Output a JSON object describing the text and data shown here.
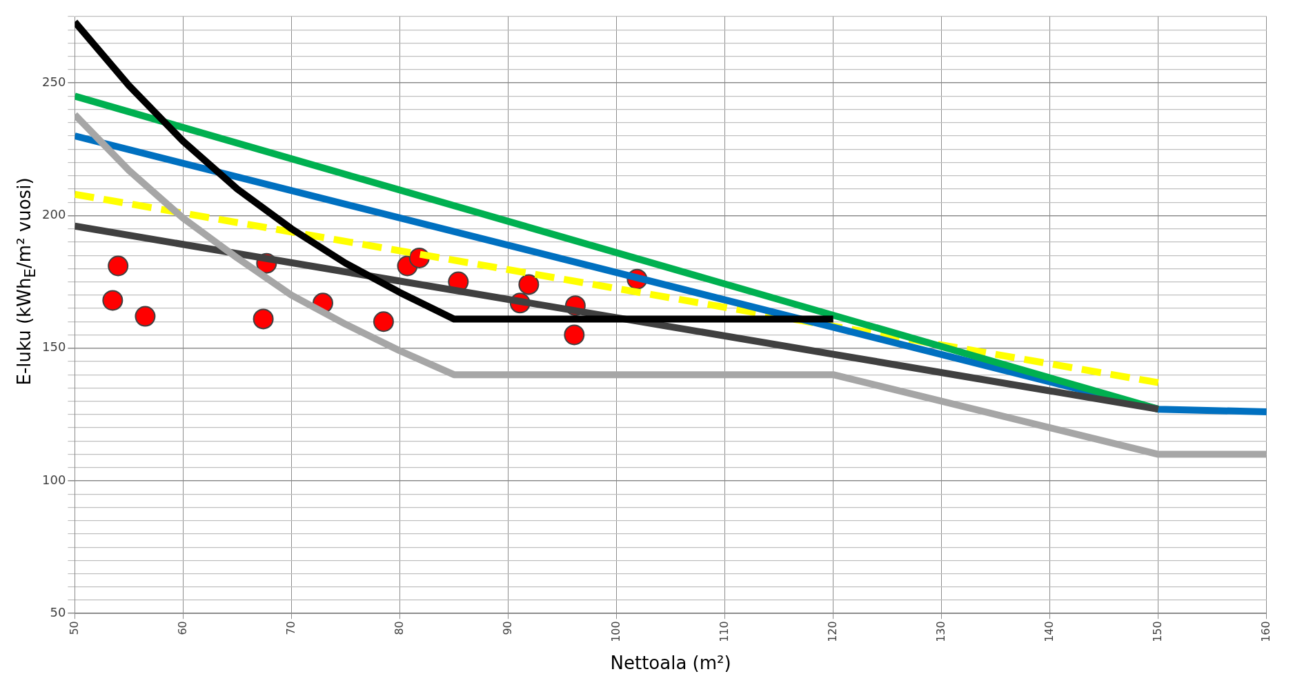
{
  "chart_data": {
    "type": "line",
    "xlabel": "Nettoala (m²)",
    "ylabel": "E-luku (kWh$_{E}$/m² vuosi)",
    "xlim": [
      50,
      160
    ],
    "xticks": [
      50,
      60,
      70,
      80,
      90,
      100,
      110,
      120,
      130,
      140,
      150,
      160
    ],
    "ylim": [
      50,
      275
    ],
    "yticks": [
      50,
      {
        "value": 55,
        "label": null
      },
      {
        "value": 60,
        "label": null
      },
      {
        "value": 65,
        "label": null
      },
      {
        "value": 70,
        "label": null
      },
      {
        "value": 75,
        "label": null
      },
      {
        "value": 80,
        "label": null
      },
      {
        "value": 85,
        "label": null
      },
      {
        "value": 90,
        "label": null
      },
      {
        "value": 95,
        "label": null
      },
      100,
      {
        "value": 105,
        "label": null
      },
      {
        "value": 110,
        "label": null
      },
      {
        "value": 115,
        "label": null
      },
      {
        "value": 120,
        "label": null
      },
      {
        "value": 125,
        "label": null
      },
      {
        "value": 130,
        "label": null
      },
      {
        "value": 135,
        "label": null
      },
      {
        "value": 140,
        "label": null
      },
      {
        "value": 145,
        "label": null
      },
      150,
      {
        "value": 155,
        "label": null
      },
      {
        "value": 160,
        "label": null
      },
      {
        "value": 165,
        "label": null
      },
      {
        "value": 170,
        "label": null
      },
      {
        "value": 175,
        "label": null
      },
      {
        "value": 180,
        "label": null
      },
      {
        "value": 185,
        "label": null
      },
      {
        "value": 190,
        "label": null
      },
      {
        "value": 195,
        "label": null
      },
      200,
      {
        "value": 205,
        "label": null
      },
      {
        "value": 210,
        "label": null
      },
      {
        "value": 215,
        "label": null
      },
      {
        "value": 220,
        "label": null
      },
      {
        "value": 225,
        "label": null
      },
      {
        "value": 230,
        "label": null
      },
      {
        "value": 235,
        "label": null
      },
      {
        "value": 240,
        "label": null
      },
      {
        "value": 245,
        "label": null
      },
      250,
      {
        "value": 255,
        "label": null
      },
      {
        "value": 260,
        "label": null
      },
      {
        "value": 265,
        "label": null
      },
      {
        "value": 270,
        "label": null
      },
      {
        "value": 275,
        "label": null
      }
    ],
    "grid": true,
    "legend": false,
    "series": [
      {
        "type": "line",
        "color": "#a6a6a6",
        "line_style": "solid",
        "marker": "none",
        "x": [
          50,
          55,
          60,
          65,
          70,
          75,
          80,
          85,
          120,
          150,
          160
        ],
        "values": [
          238,
          217,
          199,
          184,
          170,
          159,
          149,
          140,
          140,
          110,
          110
        ]
      },
      {
        "type": "line",
        "color": "#000000",
        "line_style": "solid",
        "marker": "none",
        "x": [
          50,
          55,
          60,
          65,
          70,
          75,
          80,
          85,
          120
        ],
        "values": [
          273,
          249,
          228,
          210,
          195,
          182,
          171,
          161,
          161
        ]
      },
      {
        "type": "line",
        "color": "#404040",
        "line_style": "solid",
        "marker": "none",
        "x": [
          50,
          150
        ],
        "values": [
          196,
          127
        ]
      },
      {
        "type": "line",
        "color": "#00b050",
        "line_style": "solid",
        "marker": "none",
        "x": [
          50,
          150
        ],
        "values": [
          245,
          127
        ]
      },
      {
        "type": "line",
        "color": "#0070c0",
        "line_style": "solid",
        "marker": "none",
        "x": [
          50,
          150,
          160
        ],
        "values": [
          230,
          127,
          126
        ]
      },
      {
        "type": "line",
        "color": "#ffff00",
        "line_style": "dashed",
        "marker": "none",
        "x": [
          50,
          150
        ],
        "values": [
          208,
          137
        ]
      },
      {
        "type": "scatter",
        "color": "#ff0000",
        "marker": "circle",
        "x": [
          54,
          53.5,
          56.5,
          67.7,
          67.4,
          72.9,
          78.5,
          80.7,
          81.8,
          85.4,
          91.9,
          91.1,
          96.2,
          96.1,
          101.9
        ],
        "values": [
          181,
          168,
          162,
          182,
          161,
          167,
          160,
          181,
          184,
          175,
          174,
          167,
          166,
          155,
          176
        ]
      }
    ]
  }
}
